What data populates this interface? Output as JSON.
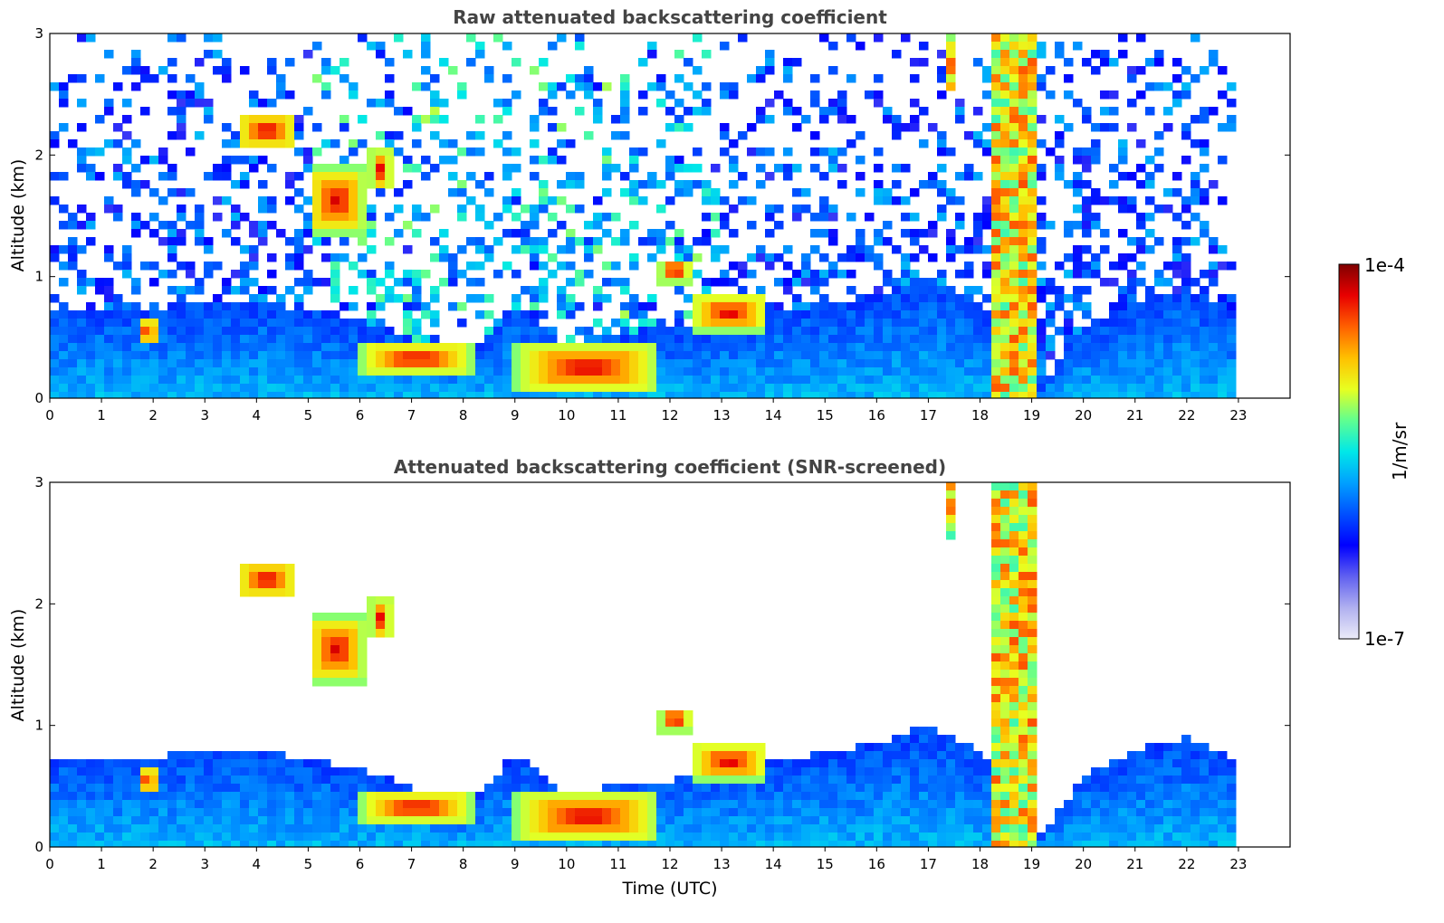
{
  "chart_data": [
    {
      "type": "heatmap",
      "title": "Raw attenuated backscattering coefficient",
      "xlabel": "",
      "ylabel": "Altitude (km)",
      "xlim": [
        0,
        24
      ],
      "ylim": [
        0,
        3
      ],
      "x_ticks": [
        0,
        1,
        2,
        3,
        4,
        5,
        6,
        7,
        8,
        9,
        10,
        11,
        12,
        13,
        14,
        15,
        16,
        17,
        18,
        19,
        20,
        21,
        22,
        23
      ],
      "y_ticks": [
        0,
        1,
        2,
        3
      ],
      "data_x_range": [
        0,
        23
      ],
      "screened": false,
      "features": [
        {
          "kind": "boundary_layer",
          "x": [
            0,
            2,
            4,
            6,
            8,
            9,
            10,
            11,
            12,
            13,
            14,
            16,
            17,
            18,
            19.2,
            20,
            21,
            22,
            23
          ],
          "y": [
            0.75,
            0.75,
            0.8,
            0.65,
            0.35,
            0.75,
            0.45,
            0.5,
            0.55,
            0.6,
            0.7,
            0.85,
            1.0,
            0.8,
            0.1,
            0.6,
            0.8,
            0.9,
            0.7
          ]
        },
        {
          "kind": "cloud",
          "x0": 3.6,
          "x1": 4.8,
          "y0": 2.05,
          "y1": 2.35
        },
        {
          "kind": "cloud",
          "x0": 5.0,
          "x1": 6.1,
          "y0": 1.35,
          "y1": 1.9
        },
        {
          "kind": "cloud",
          "x0": 6.2,
          "x1": 6.6,
          "y0": 1.7,
          "y1": 2.05
        },
        {
          "kind": "cloud",
          "x0": 1.7,
          "x1": 2.1,
          "y0": 0.45,
          "y1": 0.65
        },
        {
          "kind": "cloud",
          "x0": 6.0,
          "x1": 8.2,
          "y0": 0.2,
          "y1": 0.45
        },
        {
          "kind": "cloud",
          "x0": 9.0,
          "x1": 11.8,
          "y0": 0.05,
          "y1": 0.45
        },
        {
          "kind": "cloud",
          "x0": 11.8,
          "x1": 12.4,
          "y0": 0.95,
          "y1": 1.15
        },
        {
          "kind": "cloud",
          "x0": 12.4,
          "x1": 13.9,
          "y0": 0.55,
          "y1": 0.85
        },
        {
          "kind": "precip",
          "x0": 18.3,
          "x1": 19.1,
          "y0": 0.0,
          "y1": 3.0
        },
        {
          "kind": "precip",
          "x0": 17.3,
          "x1": 17.5,
          "y0": 2.5,
          "y1": 3.0
        }
      ]
    },
    {
      "type": "heatmap",
      "title": "Attenuated backscattering coefficient (SNR-screened)",
      "xlabel": "Time (UTC)",
      "ylabel": "Altitude (km)",
      "xlim": [
        0,
        24
      ],
      "ylim": [
        0,
        3
      ],
      "x_ticks": [
        0,
        1,
        2,
        3,
        4,
        5,
        6,
        7,
        8,
        9,
        10,
        11,
        12,
        13,
        14,
        15,
        16,
        17,
        18,
        19,
        20,
        21,
        22,
        23
      ],
      "y_ticks": [
        0,
        1,
        2,
        3
      ],
      "data_x_range": [
        0,
        23
      ],
      "screened": true
    }
  ],
  "colorbar": {
    "label": "1/m/sr",
    "min_label": "1e-7",
    "max_label": "1e-4",
    "scale": "log",
    "colors": [
      "#ebebf8",
      "#b0b0f0",
      "#6060f0",
      "#0000ff",
      "#0050ff",
      "#00a0ff",
      "#00e8e8",
      "#60ff90",
      "#e8ff20",
      "#ffc000",
      "#ff6000",
      "#e80000",
      "#800000"
    ]
  }
}
